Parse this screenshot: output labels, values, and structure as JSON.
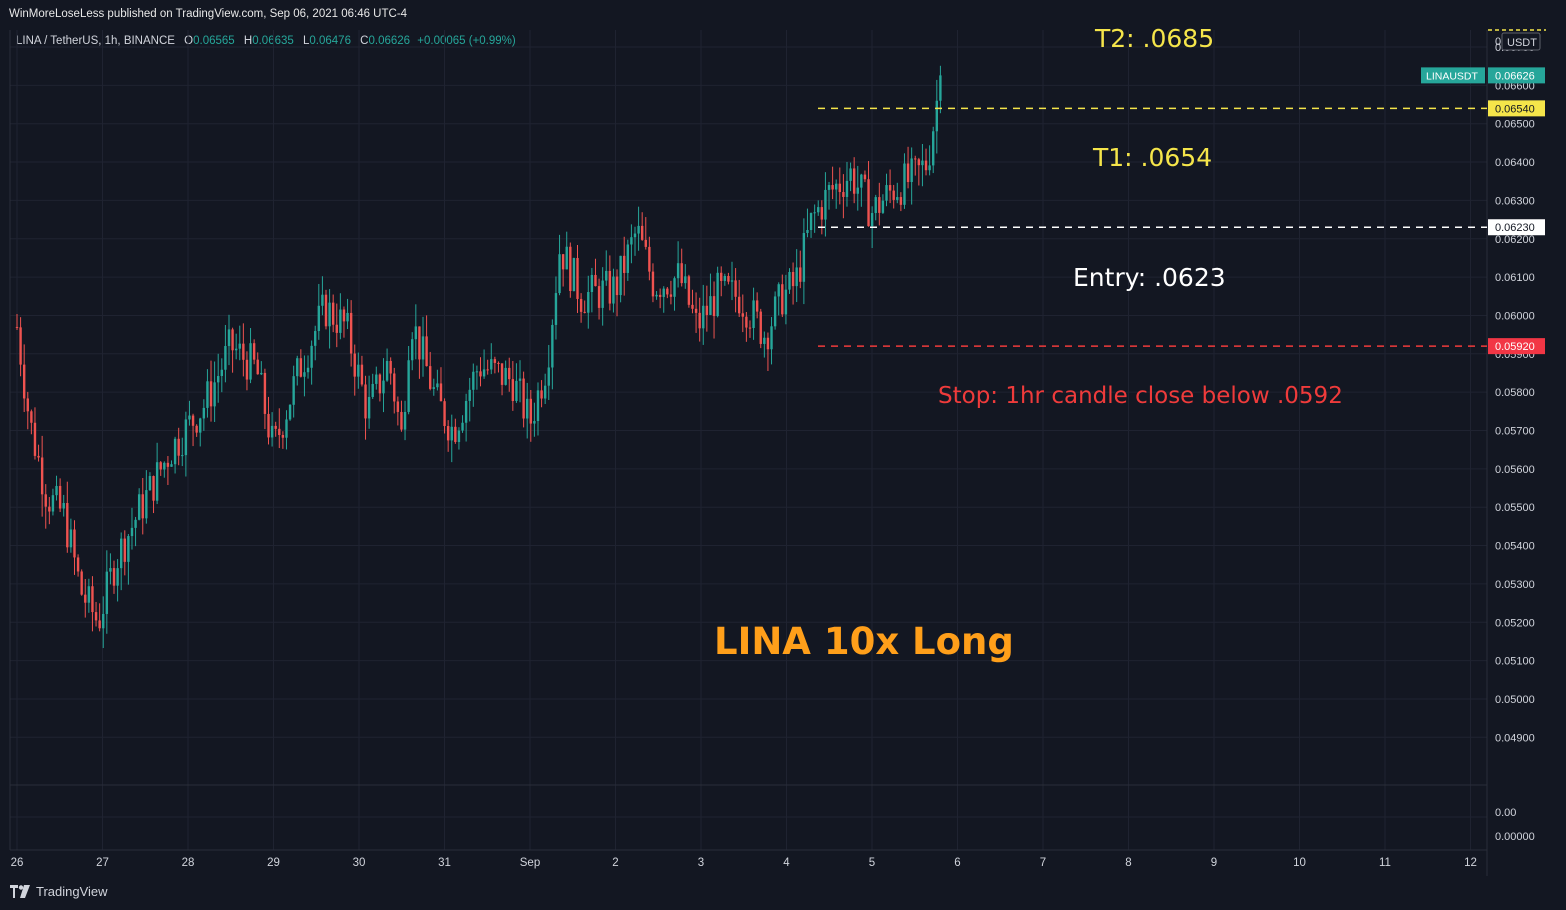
{
  "header": {
    "published": "WinMoreLoseLess published on TradingView.com, Sep 06, 2021 06:46 UTC-4",
    "symbol_line": "LINA / TetherUS, 1h, BINANCE",
    "ohlc": {
      "o_label": "O",
      "o": "0.06565",
      "h_label": "H",
      "h": "0.06635",
      "l_label": "L",
      "l": "0.06476",
      "c_label": "C",
      "c": "0.06626",
      "change": "+0.00065 (+0.99%)"
    }
  },
  "footer": {
    "brand": "TradingView"
  },
  "currency": "USDT",
  "colors": {
    "background": "#131722",
    "grid": "#1f2331",
    "up": "#26a69a",
    "down": "#ef5350",
    "target": "#f5e54a",
    "entry": "#ffffff",
    "stop": "#ef3b3b",
    "title": "#ff9f1a"
  },
  "annotations": {
    "t2": "T2: .0685",
    "t1": "T1: .0654",
    "entry": "Entry: .0623",
    "stop": "Stop: 1hr candle close below .0592",
    "title": "LINA 10x Long"
  },
  "chart_data": {
    "type": "candlestick",
    "symbol": "LINA / TetherUS",
    "interval": "1h",
    "exchange": "BINANCE",
    "ylim": [
      0.0485,
      0.0685
    ],
    "y_ticks": [
      "0.06700",
      "0.06600",
      "0.06500",
      "0.06400",
      "0.06300",
      "0.06200",
      "0.06100",
      "0.06000",
      "0.05900",
      "0.05800",
      "0.05700",
      "0.05600",
      "0.05500",
      "0.05400",
      "0.05300",
      "0.05200",
      "0.05100",
      "0.05000",
      "0.04900"
    ],
    "y_tick_top": "0",
    "x_ticks": [
      "26",
      "27",
      "28",
      "29",
      "30",
      "31",
      "Sep",
      "2",
      "3",
      "4",
      "5",
      "6",
      "7",
      "8",
      "9",
      "10",
      "11",
      "12"
    ],
    "lower_pane_ticks": [
      "0.00",
      "0.00000"
    ],
    "price_tags": {
      "last": {
        "label": "LINAUSDT",
        "value": "0.06626"
      },
      "t1": "0.06540",
      "entry": "0.06230",
      "stop": "0.05920"
    },
    "levels": {
      "t1": 0.0654,
      "entry": 0.0623,
      "stop": 0.0592
    },
    "close_path": [
      {
        "day": 26.0,
        "close": 0.0597
      },
      {
        "day": 26.15,
        "close": 0.0572
      },
      {
        "day": 26.35,
        "close": 0.0553
      },
      {
        "day": 26.55,
        "close": 0.0548
      },
      {
        "day": 26.75,
        "close": 0.0528
      },
      {
        "day": 26.95,
        "close": 0.052
      },
      {
        "day": 27.15,
        "close": 0.0536
      },
      {
        "day": 27.45,
        "close": 0.055
      },
      {
        "day": 27.8,
        "close": 0.0565
      },
      {
        "day": 28.2,
        "close": 0.0577
      },
      {
        "day": 28.5,
        "close": 0.0592
      },
      {
        "day": 28.8,
        "close": 0.0586
      },
      {
        "day": 29.0,
        "close": 0.0565
      },
      {
        "day": 29.3,
        "close": 0.0586
      },
      {
        "day": 29.6,
        "close": 0.0602
      },
      {
        "day": 29.85,
        "close": 0.0597
      },
      {
        "day": 30.1,
        "close": 0.0575
      },
      {
        "day": 30.35,
        "close": 0.0588
      },
      {
        "day": 30.5,
        "close": 0.0568
      },
      {
        "day": 30.6,
        "close": 0.06
      },
      {
        "day": 30.9,
        "close": 0.0578
      },
      {
        "day": 31.1,
        "close": 0.057
      },
      {
        "day": 31.4,
        "close": 0.0587
      },
      {
        "day": 31.8,
        "close": 0.0583
      },
      {
        "day": 32.0,
        "close": 0.0572
      },
      {
        "day": 32.2,
        "close": 0.0588
      },
      {
        "day": 32.35,
        "close": 0.0618
      },
      {
        "day": 32.6,
        "close": 0.0605
      },
      {
        "day": 33.0,
        "close": 0.0607
      },
      {
        "day": 33.25,
        "close": 0.0622
      },
      {
        "day": 33.45,
        "close": 0.0608
      },
      {
        "day": 33.75,
        "close": 0.061
      },
      {
        "day": 33.95,
        "close": 0.0597
      },
      {
        "day": 34.2,
        "close": 0.0606
      },
      {
        "day": 34.45,
        "close": 0.0605
      },
      {
        "day": 34.75,
        "close": 0.0595
      },
      {
        "day": 34.95,
        "close": 0.0605
      },
      {
        "day": 35.1,
        "close": 0.0608
      },
      {
        "day": 35.3,
        "close": 0.0625
      },
      {
        "day": 35.5,
        "close": 0.0632
      },
      {
        "day": 35.75,
        "close": 0.0637
      },
      {
        "day": 36.0,
        "close": 0.0627
      },
      {
        "day": 36.25,
        "close": 0.0633
      },
      {
        "day": 36.5,
        "close": 0.0636
      },
      {
        "day": 36.65,
        "close": 0.064
      },
      {
        "day": 36.8,
        "close": 0.0662
      }
    ]
  }
}
